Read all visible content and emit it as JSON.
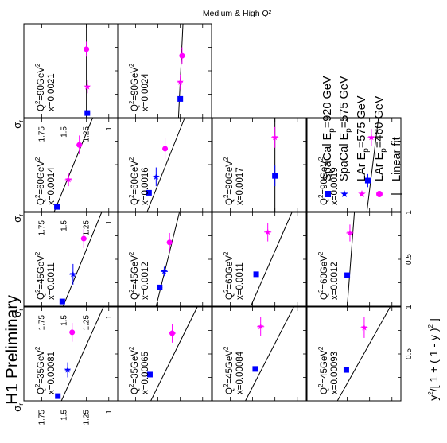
{
  "chart_data": {
    "type": "scatter",
    "title": "Medium & High Q²",
    "watermark": "H1 Preliminary",
    "xlabel": "y²/[ 1 + ( 1 - y )² ]",
    "ylabel": "σr",
    "xlim": [
      0,
      1
    ],
    "ylim": [
      0.9,
      1.95
    ],
    "y_ticks": [
      "1.75",
      "1.5",
      "1.25",
      "1"
    ],
    "x_ticks": [
      "0.5",
      "1"
    ],
    "x_tick_values": [
      0.5,
      1.0
    ],
    "y_tick_values": [
      1.75,
      1.5,
      1.25,
      1.0
    ],
    "series": [
      {
        "name": "SpaCal Ep=920 GeV",
        "marker": "square",
        "color": "#0000ff"
      },
      {
        "name": "SpaCal Ep=575 GeV",
        "marker": "star",
        "color": "#0000ff"
      },
      {
        "name": "LAr Ep=575 GeV",
        "marker": "star",
        "color": "#ff00ff"
      },
      {
        "name": "LAr Ep=460 GeV",
        "marker": "circle",
        "color": "#ff00ff"
      },
      {
        "name": "Linear fit",
        "marker": "line",
        "color": "#000000"
      }
    ],
    "panels": [
      {
        "Q2": "35",
        "x": "0.00081",
        "col": 0,
        "row": 0,
        "fit": [
          1.53,
          1.06
        ],
        "points": [
          [
            0,
            0.05,
            1.57,
            0.02,
            0
          ],
          [
            1,
            0.33,
            1.46,
            0.03,
            0.08
          ],
          [
            3,
            0.73,
            1.41,
            0.03,
            0.1
          ]
        ]
      },
      {
        "Q2": "45",
        "x": "0.0011",
        "col": 0,
        "row": 1,
        "fit": [
          1.51,
          1.08
        ],
        "points": [
          [
            0,
            0.05,
            1.52,
            0.02,
            0
          ],
          [
            1,
            0.34,
            1.4,
            0.04,
            0.11
          ],
          [
            3,
            0.72,
            1.28,
            0.03,
            0.1
          ]
        ]
      },
      {
        "Q2": "60",
        "x": "0.0014",
        "col": 0,
        "row": 2,
        "fit": [
          1.61,
          1.18
        ],
        "points": [
          [
            0,
            0.05,
            1.58,
            0.03,
            0
          ],
          [
            2,
            0.34,
            1.45,
            0.04,
            0.07
          ],
          [
            3,
            0.71,
            1.33,
            0.03,
            0.1
          ]
        ]
      },
      {
        "Q2": "90",
        "x": "0.0021",
        "col": 0,
        "row": 3,
        "fit": [
          1.25,
          1.25
        ],
        "points": [
          [
            0,
            0.05,
            1.24,
            0.03,
            0
          ],
          [
            2,
            0.33,
            1.24,
            0.03,
            0.07
          ],
          [
            3,
            0.73,
            1.25,
            0.03,
            0.08
          ]
        ]
      },
      {
        "Q2": "35",
        "x": "0.00065",
        "col": 1,
        "row": 0,
        "fit": [
          1.58,
          1.06
        ],
        "points": [
          [
            0,
            0.28,
            1.59,
            0.02,
            0
          ],
          [
            3,
            0.72,
            1.34,
            0.04,
            0.1
          ]
        ]
      },
      {
        "Q2": "45",
        "x": "0.0012",
        "col": 1,
        "row": 1,
        "fit": [
          1.52,
          1.26
        ],
        "points": [
          [
            0,
            0.2,
            1.48,
            0.03,
            0
          ],
          [
            1,
            0.37,
            1.43,
            0.04,
            0.05
          ],
          [
            3,
            0.68,
            1.37,
            0.03,
            0.1
          ]
        ]
      },
      {
        "Q2": "60",
        "x": "0.0016",
        "col": 1,
        "row": 2,
        "fit": [
          1.62,
          1.2
        ],
        "points": [
          [
            0,
            0.2,
            1.6,
            0.02,
            0
          ],
          [
            1,
            0.37,
            1.52,
            0.04,
            0.1
          ],
          [
            3,
            0.67,
            1.42,
            0.03,
            0.11
          ]
        ]
      },
      {
        "Q2": "90",
        "x": "0.0024",
        "col": 1,
        "row": 3,
        "fit": [
          1.27,
          1.22
        ],
        "points": [
          [
            0,
            0.2,
            1.25,
            0.02,
            0
          ],
          [
            2,
            0.38,
            1.25,
            0.03,
            0.08
          ],
          [
            3,
            0.66,
            1.23,
            0.03,
            0.09
          ]
        ]
      },
      {
        "Q2": "45",
        "x": "0.00084",
        "col": 2,
        "row": 0,
        "fit": [
          1.58,
          1.04
        ],
        "points": [
          [
            0,
            0.34,
            1.47,
            0.02,
            0
          ],
          [
            2,
            0.79,
            1.41,
            0.04,
            0.1
          ]
        ]
      },
      {
        "Q2": "60",
        "x": "0.0011",
        "col": 2,
        "row": 1,
        "fit": [
          1.52,
          1.06
        ],
        "points": [
          [
            0,
            0.34,
            1.46,
            0.03,
            0
          ],
          [
            2,
            0.79,
            1.33,
            0.04,
            0.1
          ]
        ]
      },
      {
        "Q2": "90",
        "x": "0.0017",
        "col": 2,
        "row": 2,
        "fit": [
          1.25,
          1.25
        ],
        "points": [
          [
            0,
            0.38,
            1.25,
            0.03,
            0.11
          ],
          [
            2,
            0.79,
            1.25,
            0.04,
            0.11
          ]
        ]
      },
      {
        "Q2": "45",
        "x": "0.00093",
        "col": 3,
        "row": 0,
        "fit": [
          1.61,
          1.02
        ],
        "points": [
          [
            0,
            0.33,
            1.51,
            0.02,
            0
          ],
          [
            2,
            0.78,
            1.31,
            0.04,
            0.11
          ]
        ]
      },
      {
        "Q2": "60",
        "x": "0.0012",
        "col": 3,
        "row": 1,
        "fit": [
          1.5,
          1.42
        ],
        "points": [
          [
            0,
            0.33,
            1.5,
            0.02,
            0
          ],
          [
            2,
            0.78,
            1.47,
            0.04,
            0.09
          ]
        ]
      },
      {
        "Q2": "90",
        "x": "0.0019",
        "col": 3,
        "row": 2,
        "fit": [
          1.28,
          1.15
        ],
        "points": [
          [
            0,
            0.33,
            1.27,
            0.02,
            0.07
          ],
          [
            2,
            0.79,
            1.23,
            0.04,
            0.09
          ]
        ]
      }
    ]
  }
}
